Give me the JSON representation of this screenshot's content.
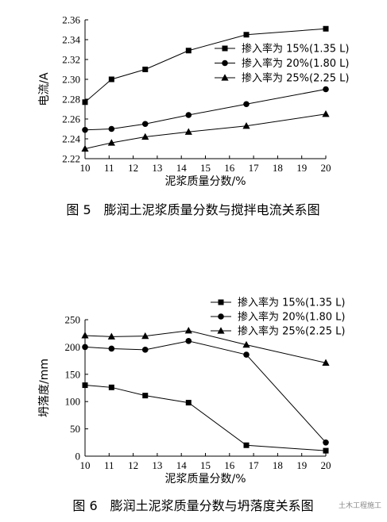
{
  "chart_data": [
    {
      "type": "line",
      "caption": "图 5　膨润土泥浆质量分数与搅拌电流关系图",
      "xlabel": "泥浆质量分数/%",
      "ylabel": "电流/A",
      "xlim": [
        10,
        20
      ],
      "ylim": [
        2.22,
        2.36
      ],
      "xticks": [
        10,
        11,
        12,
        13,
        14,
        15,
        16,
        17,
        18,
        19,
        20
      ],
      "yticks": [
        2.22,
        2.24,
        2.26,
        2.28,
        2.3,
        2.32,
        2.34,
        2.36
      ],
      "ytick_labels": [
        "2.22",
        "2.24",
        "2.26",
        "2.28",
        "2.30",
        "2.32",
        "2.34",
        "2.36"
      ],
      "legend_position": "top-right",
      "series": [
        {
          "name": "掺入率为 15%(1.35 L)",
          "marker": "square",
          "x": [
            10,
            11.1,
            12.5,
            14.3,
            16.7,
            20
          ],
          "y": [
            2.277,
            2.3,
            2.31,
            2.329,
            2.345,
            2.351
          ]
        },
        {
          "name": "掺入率为 20%(1.80 L)",
          "marker": "circle",
          "x": [
            10,
            11.1,
            12.5,
            14.3,
            16.7,
            20
          ],
          "y": [
            2.249,
            2.25,
            2.255,
            2.264,
            2.275,
            2.29
          ]
        },
        {
          "name": "掺入率为 25%(2.25 L)",
          "marker": "triangle",
          "x": [
            10,
            11.1,
            12.5,
            14.3,
            16.7,
            20
          ],
          "y": [
            2.23,
            2.236,
            2.242,
            2.247,
            2.253,
            2.265
          ]
        }
      ]
    },
    {
      "type": "line",
      "caption": "图 6　膨润土泥浆质量分数与坍落度关系图",
      "xlabel": "泥浆质量分数/%",
      "ylabel": "坍落度/mm",
      "xlim": [
        10,
        20
      ],
      "ylim": [
        0,
        250
      ],
      "xticks": [
        10,
        11,
        12,
        13,
        14,
        15,
        16,
        17,
        18,
        19,
        20
      ],
      "yticks": [
        0,
        50,
        100,
        150,
        200,
        250
      ],
      "ytick_labels": [
        "0",
        "50",
        "100",
        "150",
        "200",
        "250"
      ],
      "legend_position": "top-right",
      "series": [
        {
          "name": "掺入率为 15%(1.35 L)",
          "marker": "square",
          "x": [
            10,
            11.1,
            12.5,
            14.3,
            16.7,
            20
          ],
          "y": [
            130,
            126,
            111,
            98,
            20,
            10
          ]
        },
        {
          "name": "掺入率为 20%(1.80 L)",
          "marker": "circle",
          "x": [
            10,
            11.1,
            12.5,
            14.3,
            16.7,
            20
          ],
          "y": [
            200,
            197,
            195,
            211,
            186,
            25
          ]
        },
        {
          "name": "掺入率为 25%(2.25 L)",
          "marker": "triangle",
          "x": [
            10,
            11.1,
            12.5,
            14.3,
            16.7,
            20
          ],
          "y": [
            221,
            219,
            220,
            230,
            204,
            171
          ]
        }
      ]
    }
  ],
  "watermark": "土木工程施工"
}
